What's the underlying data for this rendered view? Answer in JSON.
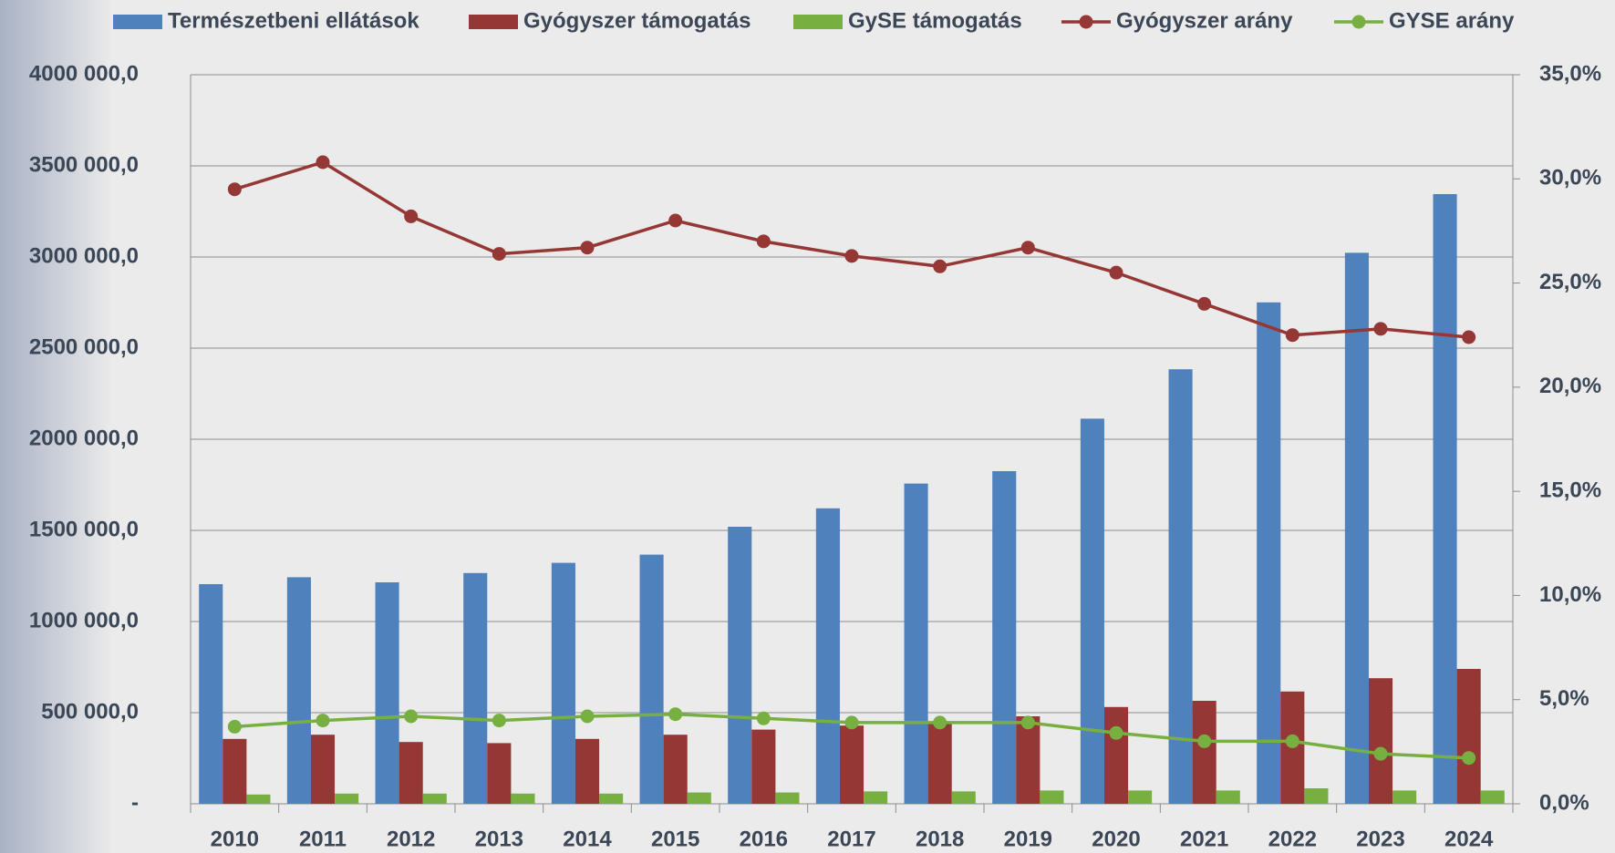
{
  "chart_data": {
    "type": "bar",
    "categories": [
      "2010",
      "2011",
      "2012",
      "2013",
      "2014",
      "2015",
      "2016",
      "2017",
      "2018",
      "2019",
      "2020",
      "2021",
      "2022",
      "2023",
      "2024"
    ],
    "series": [
      {
        "name": "Természetbeni ellátások",
        "color": "#4f81bd",
        "type": "bar",
        "values": [
          1205000,
          1243000,
          1215000,
          1266000,
          1322000,
          1367000,
          1520000,
          1621000,
          1757000,
          1825000,
          2113000,
          2384000,
          2751000,
          3023000,
          3345000
        ]
      },
      {
        "name": "Gyógyszer támogatás",
        "color": "#953735",
        "type": "bar",
        "values": [
          356000,
          379000,
          339000,
          333000,
          356000,
          379000,
          407000,
          429000,
          446000,
          480000,
          531000,
          565000,
          616000,
          689000,
          740000
        ]
      },
      {
        "name": "GySE támogatás",
        "color": "#77b041",
        "type": "bar",
        "values": [
          51000,
          56000,
          56000,
          56000,
          56000,
          62000,
          62000,
          68000,
          68000,
          73000,
          73000,
          73000,
          85000,
          73000,
          73000
        ]
      },
      {
        "name": "Gyógyszer arány",
        "color": "#953735",
        "type": "line",
        "axis": "y2",
        "values": [
          29.5,
          30.8,
          28.2,
          26.4,
          26.7,
          28.0,
          27.0,
          26.3,
          25.8,
          26.7,
          25.5,
          24.0,
          22.5,
          22.8,
          22.4
        ]
      },
      {
        "name": "GYSE arány",
        "color": "#77b041",
        "type": "line",
        "axis": "y2",
        "values": [
          3.7,
          4.0,
          4.2,
          4.0,
          4.2,
          4.3,
          4.1,
          3.9,
          3.9,
          3.9,
          3.4,
          3.0,
          3.0,
          2.4,
          2.2
        ]
      }
    ],
    "ylim": [
      0,
      4000000
    ],
    "yticks": [
      {
        "value": 0,
        "label": "-"
      },
      {
        "value": 500000,
        "label": "500 000,0"
      },
      {
        "value": 1000000,
        "label": "1000 000,0"
      },
      {
        "value": 1500000,
        "label": "1500 000,0"
      },
      {
        "value": 2000000,
        "label": "2000 000,0"
      },
      {
        "value": 2500000,
        "label": "2500 000,0"
      },
      {
        "value": 3000000,
        "label": "3000 000,0"
      },
      {
        "value": 3500000,
        "label": "3500 000,0"
      },
      {
        "value": 4000000,
        "label": "4000 000,0"
      }
    ],
    "y2lim": [
      0,
      35
    ],
    "y2ticks": [
      {
        "value": 0,
        "label": "0,0%"
      },
      {
        "value": 5,
        "label": "5,0%"
      },
      {
        "value": 10,
        "label": "10,0%"
      },
      {
        "value": 15,
        "label": "15,0%"
      },
      {
        "value": 20,
        "label": "20,0%"
      },
      {
        "value": 25,
        "label": "25,0%"
      },
      {
        "value": 30,
        "label": "30,0%"
      },
      {
        "value": 35,
        "label": "35,0%"
      }
    ],
    "grid": true,
    "legend": "top"
  }
}
